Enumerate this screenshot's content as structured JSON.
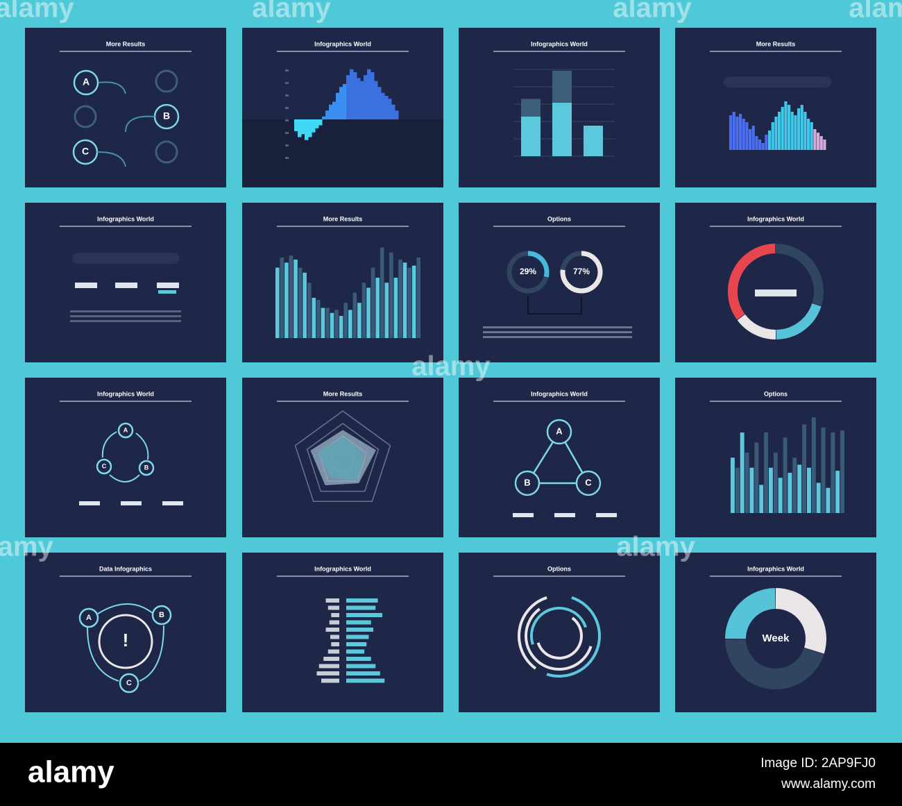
{
  "cards": [
    {
      "type": "flow",
      "title": "More Results",
      "nodes": [
        "A",
        "B",
        "C"
      ]
    },
    {
      "type": "area",
      "title": "Infographics World",
      "values": [
        -20,
        -30,
        -25,
        -35,
        -30,
        -22,
        -15,
        -10,
        5,
        15,
        25,
        30,
        45,
        55,
        60,
        75,
        85,
        80,
        70,
        65,
        75,
        85,
        80,
        65,
        55,
        45,
        40,
        35,
        25,
        15
      ]
    },
    {
      "type": "bar",
      "title": "Infographics World",
      "series": [
        {
          "color": "#5bc8dc",
          "values": [
            52,
            70,
            40
          ]
        },
        {
          "color": "#3d5f7c",
          "values": [
            23,
            42,
            0
          ]
        }
      ]
    },
    {
      "type": "hist",
      "title": "More Results",
      "values": [
        50,
        55,
        48,
        52,
        45,
        40,
        30,
        35,
        20,
        15,
        10,
        22,
        28,
        40,
        48,
        55,
        62,
        70,
        65,
        55,
        50,
        60,
        65,
        55,
        45,
        40,
        30,
        25,
        20,
        15
      ]
    },
    {
      "type": "stats",
      "title": "Infographics World"
    },
    {
      "type": "bars",
      "title": "More Results",
      "series": [
        {
          "color": "#5bc8dc",
          "values": [
            70,
            75,
            78,
            65,
            40,
            30,
            25,
            22,
            28,
            35,
            50,
            60,
            55,
            60,
            75,
            72
          ]
        },
        {
          "color": "#3a5a7a",
          "values": [
            80,
            82,
            70,
            55,
            38,
            30,
            28,
            35,
            45,
            55,
            70,
            90,
            85,
            78,
            70,
            80
          ]
        }
      ]
    },
    {
      "type": "donuts",
      "title": "Options",
      "values": [
        29,
        77
      ],
      "value_labels": [
        "29%",
        "77%"
      ]
    },
    {
      "type": "ring",
      "title": "Infographics World",
      "values": [
        30,
        20,
        15,
        35
      ],
      "colors": [
        "#2f4560",
        "#56c3d8",
        "#eae6e8",
        "#e8464f"
      ]
    },
    {
      "type": "cycle",
      "title": "Infographics World",
      "nodes": [
        "A",
        "B",
        "C"
      ]
    },
    {
      "type": "radar",
      "title": "More Results",
      "series": [
        {
          "color": "#9bb6c4",
          "values": [
            62,
            70,
            55,
            60,
            68
          ]
        },
        {
          "color": "#5aa8b8",
          "values": [
            48,
            45,
            50,
            40,
            52
          ]
        }
      ]
    },
    {
      "type": "triangle",
      "title": "Infographics World",
      "nodes": [
        "A",
        "B",
        "C"
      ]
    },
    {
      "type": "bars",
      "title": "Options",
      "series": [
        {
          "color": "#5bc8dc",
          "values": [
            55,
            80,
            45,
            28,
            45,
            35,
            40,
            48,
            45,
            30,
            25,
            42
          ]
        },
        {
          "color": "#3a5a7a",
          "values": [
            45,
            60,
            70,
            80,
            60,
            75,
            55,
            88,
            95,
            85,
            80,
            82
          ]
        }
      ]
    },
    {
      "type": "cycle2",
      "title": "Data Infographics",
      "nodes": [
        "A",
        "B",
        "C"
      ],
      "center": "!"
    },
    {
      "type": "hbars",
      "title": "Infographics World",
      "series": [
        {
          "color": "#c8ccd4",
          "values": [
            30,
            25,
            18,
            22,
            30,
            20,
            18,
            25,
            35,
            45,
            50,
            40
          ]
        },
        {
          "color": "#5bc8dc",
          "values": [
            70,
            65,
            80,
            55,
            60,
            50,
            45,
            40,
            55,
            65,
            75,
            85
          ]
        }
      ]
    },
    {
      "type": "rings",
      "title": "Options"
    },
    {
      "type": "donut",
      "title": "Infographics World",
      "values": [
        30,
        45,
        25
      ],
      "colors": [
        "#eae6e8",
        "#2f4560",
        "#56c3d8"
      ],
      "center": "Week"
    }
  ],
  "watermark": "alamy",
  "footer": {
    "logo": "alamy",
    "image_id": "Image ID: 2AP9FJ0",
    "url": "www.alamy.com"
  }
}
